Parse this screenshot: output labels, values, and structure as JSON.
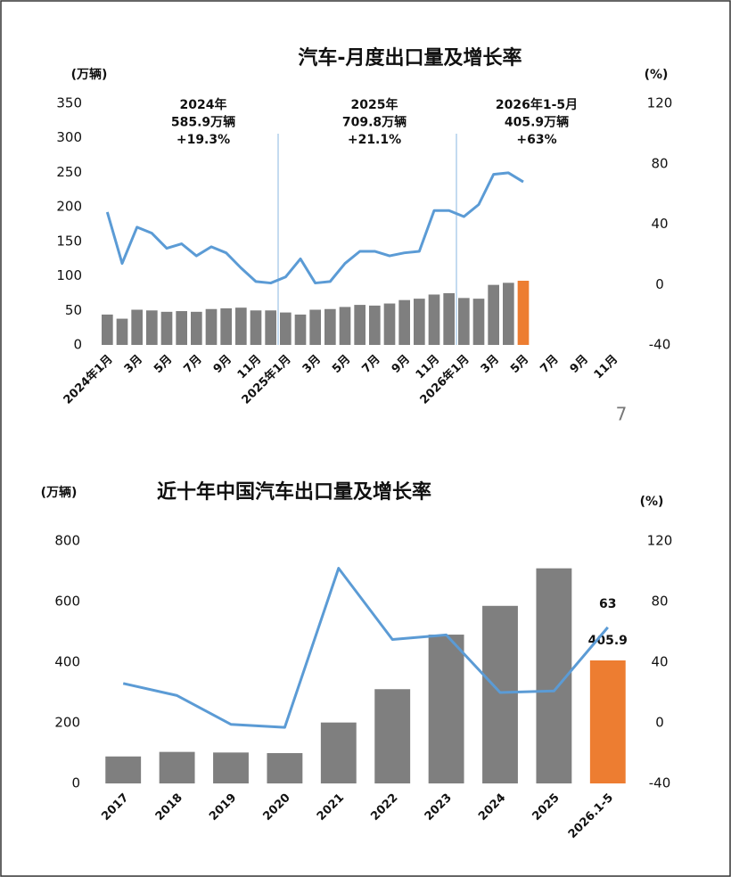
{
  "page_number": "7",
  "chart_data": [
    {
      "type": "combo",
      "title": "汽车-月度出口量及增长率",
      "ylabel": "(万辆)",
      "y2label": "(%)",
      "categories": [
        "2024年1月",
        null,
        "3月",
        null,
        "5月",
        null,
        "7月",
        null,
        "9月",
        null,
        "11月",
        null,
        "2025年1月",
        null,
        "3月",
        null,
        "5月",
        null,
        "7月",
        null,
        "9月",
        null,
        "11月",
        null,
        "2026年1月",
        null,
        "3月",
        null,
        "5月",
        null,
        "7月",
        null,
        "9月",
        null,
        "11月",
        null
      ],
      "series": [
        {
          "type": "bar",
          "axis": "y",
          "values": [
            44,
            38,
            51,
            50,
            48,
            49,
            48,
            52,
            53,
            54,
            50,
            50,
            47,
            44,
            51,
            52,
            55,
            58,
            57,
            60,
            65,
            67,
            73,
            75,
            68,
            67,
            87,
            90,
            93,
            null,
            null,
            null,
            null,
            null,
            null,
            null
          ],
          "colors": [
            "#7f7f7f",
            "#7f7f7f",
            "#7f7f7f",
            "#7f7f7f",
            "#7f7f7f",
            "#7f7f7f",
            "#7f7f7f",
            "#7f7f7f",
            "#7f7f7f",
            "#7f7f7f",
            "#7f7f7f",
            "#7f7f7f",
            "#7f7f7f",
            "#7f7f7f",
            "#7f7f7f",
            "#7f7f7f",
            "#7f7f7f",
            "#7f7f7f",
            "#7f7f7f",
            "#7f7f7f",
            "#7f7f7f",
            "#7f7f7f",
            "#7f7f7f",
            "#7f7f7f",
            "#7f7f7f",
            "#7f7f7f",
            "#7f7f7f",
            "#7f7f7f",
            "#ed7d31",
            null,
            null,
            null,
            null,
            null,
            null,
            null
          ]
        },
        {
          "type": "line",
          "axis": "y2",
          "color": "#5b9bd5",
          "values": [
            48,
            14,
            38,
            34,
            24,
            27,
            19,
            25,
            21,
            11,
            2,
            1,
            5,
            17,
            1,
            2,
            14,
            22,
            22,
            19,
            21,
            22,
            49,
            49,
            45,
            53,
            73,
            74,
            68,
            null,
            null,
            null,
            null,
            null,
            null,
            null
          ]
        }
      ],
      "annotations": [
        {
          "lines": [
            "2024年",
            "585.9万辆",
            "+19.3%"
          ]
        },
        {
          "lines": [
            "2025年",
            "709.8万辆",
            "+21.1%"
          ]
        },
        {
          "lines": [
            "2026年1-5月",
            "405.9万辆",
            "+63%"
          ]
        }
      ],
      "ylim": [
        0,
        350
      ],
      "yticks": [
        0,
        50,
        100,
        150,
        200,
        250,
        300,
        350
      ],
      "y2lim": [
        -40,
        120
      ],
      "y2ticks": [
        -40,
        0,
        40,
        80,
        120
      ]
    },
    {
      "type": "combo",
      "title": "近十年中国汽车出口量及增长率",
      "ylabel": "(万辆)",
      "y2label": "(%)",
      "categories": [
        "2017",
        "2018",
        "2019",
        "2020",
        "2021",
        "2022",
        "2023",
        "2024",
        "2025",
        "2026.1-5"
      ],
      "series": [
        {
          "type": "bar",
          "axis": "y",
          "values": [
            89,
            104,
            102,
            100,
            201,
            311,
            491,
            585.9,
            709.8,
            405.9
          ],
          "colors": [
            "#7f7f7f",
            "#7f7f7f",
            "#7f7f7f",
            "#7f7f7f",
            "#7f7f7f",
            "#7f7f7f",
            "#7f7f7f",
            "#7f7f7f",
            "#7f7f7f",
            "#ed7d31"
          ],
          "value_labels": [
            null,
            null,
            null,
            null,
            null,
            null,
            null,
            null,
            null,
            "405.9"
          ]
        },
        {
          "type": "line",
          "axis": "y2",
          "color": "#5b9bd5",
          "values": [
            26,
            18,
            -1,
            -3,
            102,
            55,
            58,
            20,
            21,
            63
          ],
          "value_labels": [
            null,
            null,
            null,
            null,
            null,
            null,
            null,
            null,
            null,
            "63"
          ]
        }
      ],
      "ylim": [
        0,
        800
      ],
      "yticks": [
        0,
        200,
        400,
        600,
        800
      ],
      "y2lim": [
        -40,
        120
      ],
      "y2ticks": [
        -40,
        0,
        40,
        80,
        120
      ]
    }
  ]
}
